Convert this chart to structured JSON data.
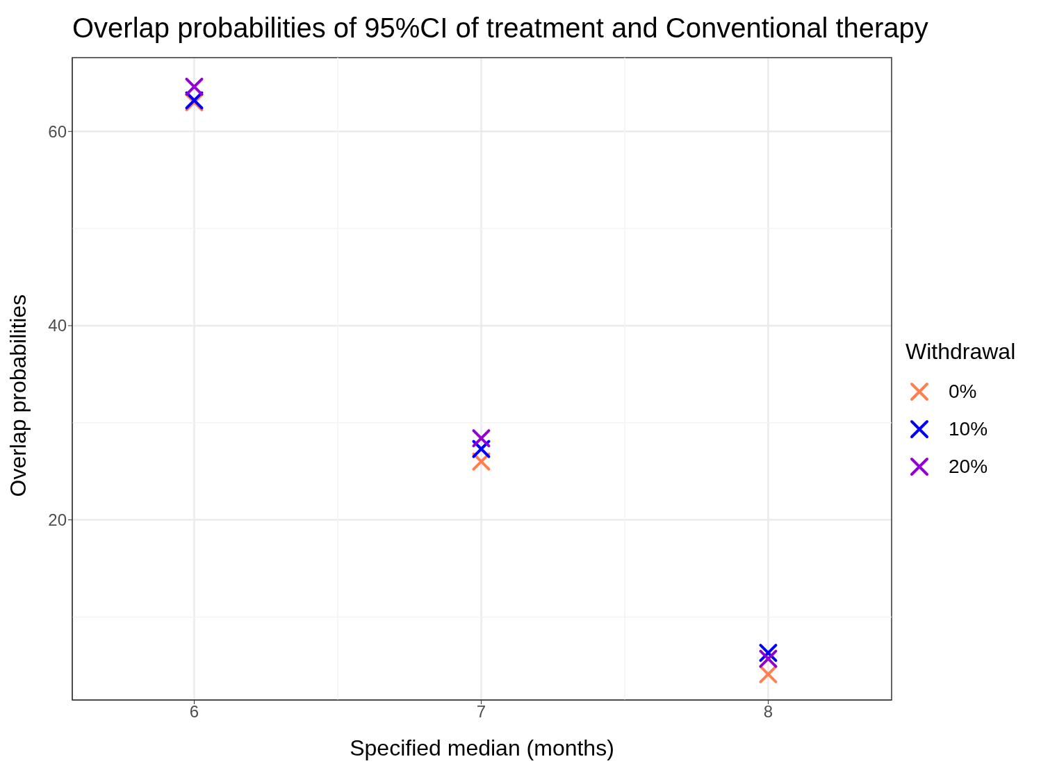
{
  "chart_data": {
    "type": "scatter",
    "title": "Overlap probabilities of 95%CI of treatment and Conventional therapy",
    "xlabel": "Specified median (months)",
    "ylabel": "Overlap probabilities",
    "legend_title": "Withdrawal",
    "x": [
      6,
      7,
      8
    ],
    "series": [
      {
        "name": "0%",
        "color": "#ff7f50",
        "values": [
          63.0,
          26.0,
          4.1
        ]
      },
      {
        "name": "10%",
        "color": "#0000ff",
        "values": [
          63.2,
          27.3,
          6.3
        ]
      },
      {
        "name": "20%",
        "color": "#9400d3",
        "values": [
          64.6,
          28.4,
          5.7
        ]
      }
    ],
    "xlim": [
      5.575,
      8.43
    ],
    "xticks": [
      6,
      7,
      8
    ],
    "ylim": [
      1.45,
      67.6
    ],
    "yticks": [
      20,
      40,
      60
    ],
    "grid": true,
    "legend": "right",
    "marker": "cross"
  }
}
